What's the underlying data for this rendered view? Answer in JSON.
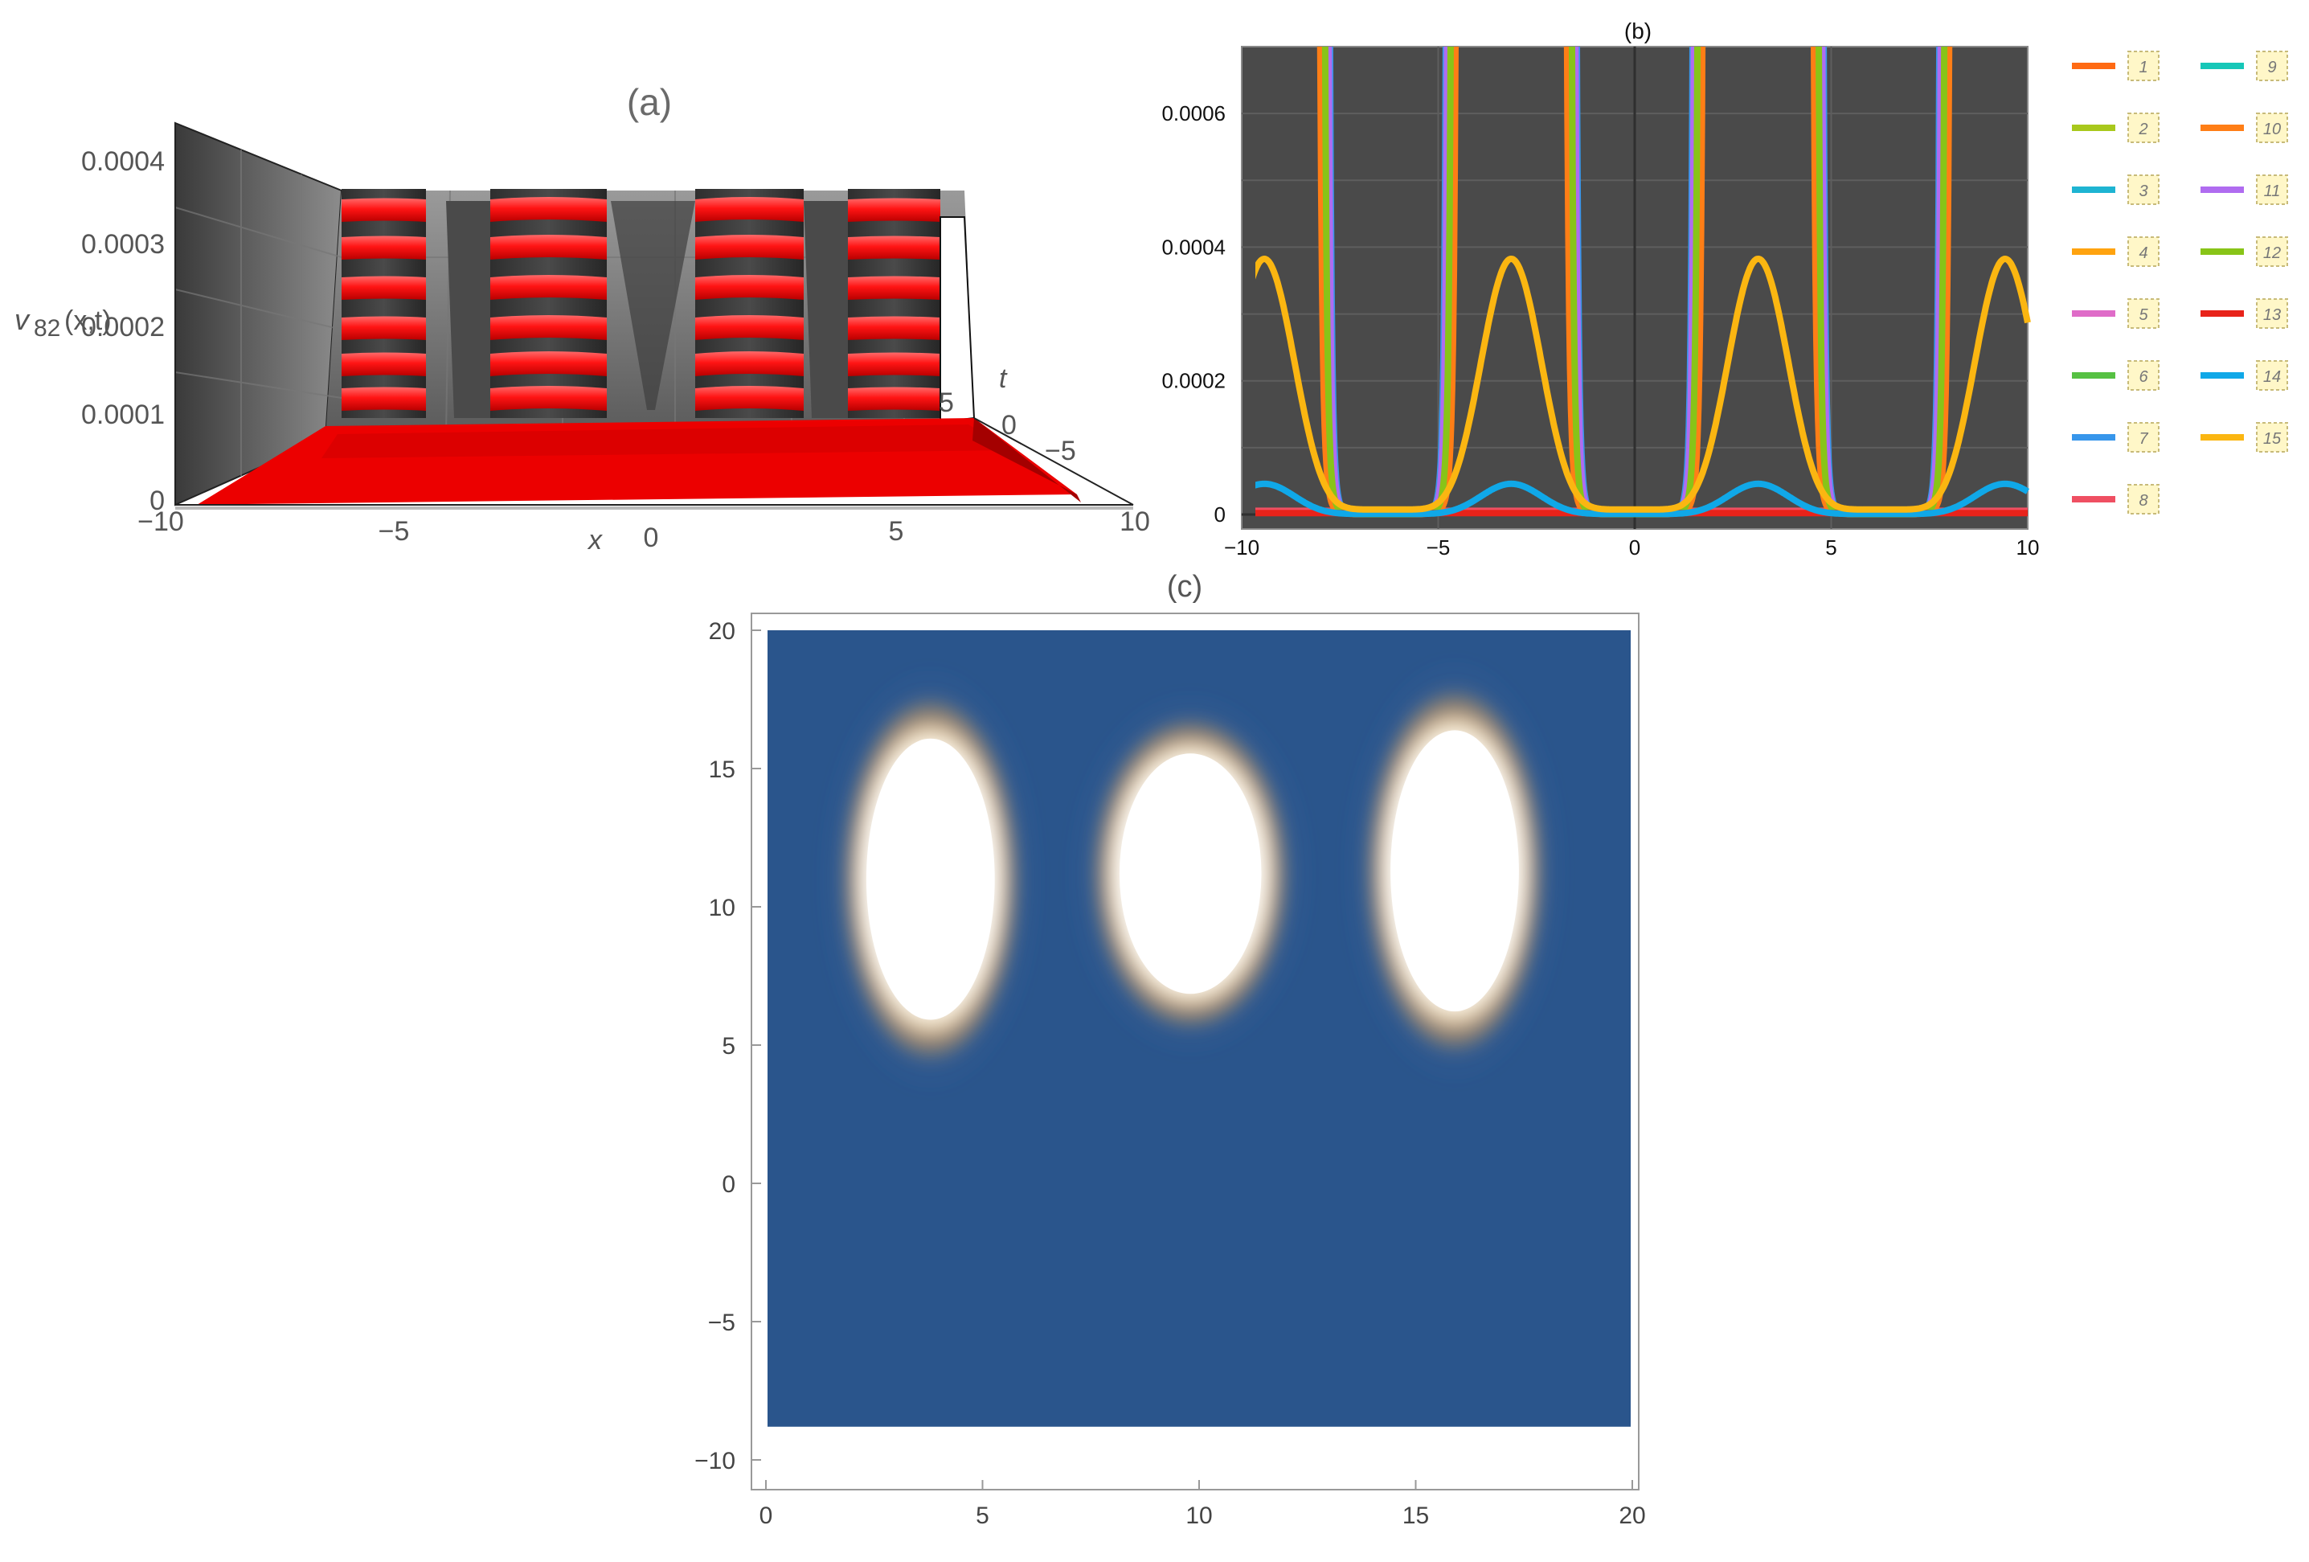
{
  "panel_a": {
    "label": "(a)",
    "z_ticks": [
      "0",
      "0.0001",
      "0.0002",
      "0.0003",
      "0.0004"
    ],
    "x_ticks": [
      "−10",
      "−5",
      "0",
      "5",
      "10"
    ],
    "x_label": "x",
    "t_label": "t",
    "t_ticks": [
      "−5",
      "0",
      "5"
    ],
    "z_label_main": "v",
    "z_label_sub": "82",
    "z_label_args": "(x,t)",
    "colors": {
      "surface": "#ff1a1a",
      "box": "#707070"
    }
  },
  "chart_data": [
    {
      "type": "line",
      "title": "(b)",
      "xlim": [
        -10,
        10
      ],
      "ylim": [
        0,
        0.0007
      ],
      "x_ticks": [
        "−10",
        "−5",
        "0",
        "5",
        "10"
      ],
      "y_ticks": [
        "0",
        "0.0002",
        "0.0004",
        "0.0006"
      ],
      "grid": true,
      "background": "#4a4a4a",
      "legend_placement": "right",
      "series": [
        {
          "name": "1",
          "color": "#ff6a13",
          "family": "wall",
          "width": 0.7
        },
        {
          "name": "2",
          "color": "#a8c81c",
          "family": "wall",
          "width": 0.55
        },
        {
          "name": "3",
          "color": "#1eb4d2",
          "family": "wall",
          "width": 0.4
        },
        {
          "name": "4",
          "color": "#ffa30f",
          "family": "wall",
          "width": 0.62
        },
        {
          "name": "5",
          "color": "#df6cc8",
          "family": "wall",
          "width": 0.45
        },
        {
          "name": "6",
          "color": "#56c143",
          "family": "wall",
          "width": 0.5
        },
        {
          "name": "7",
          "color": "#3796eb",
          "family": "wall",
          "width": 0.35
        },
        {
          "name": "8",
          "color": "#ef4f62",
          "family": "flat",
          "level": 5.5e-06
        },
        {
          "name": "9",
          "color": "#16c7b8",
          "family": "wall",
          "width": 0.48
        },
        {
          "name": "10",
          "color": "#ff7e16",
          "family": "wall",
          "width": 0.85
        },
        {
          "name": "11",
          "color": "#b06cf0",
          "family": "wall",
          "width": 0.42
        },
        {
          "name": "12",
          "color": "#88c418",
          "family": "wall",
          "width": 0.6
        },
        {
          "name": "13",
          "color": "#e8231a",
          "family": "flat",
          "level": 2e-06
        },
        {
          "name": "14",
          "color": "#10a8e8",
          "family": "bump",
          "amplitude": 4.5e-05
        },
        {
          "name": "15",
          "color": "#fbb611",
          "family": "bump",
          "amplitude": 0.000375
        }
      ]
    },
    {
      "type": "heatmap",
      "title": "(c)",
      "xlim": [
        0,
        20
      ],
      "ylim": [
        -10,
        20
      ],
      "x_ticks": [
        "0",
        "5",
        "10",
        "15",
        "20"
      ],
      "y_ticks": [
        "−10",
        "−5",
        "0",
        "5",
        "10",
        "15",
        "20"
      ],
      "background": "#2a558c",
      "data_extent": {
        "x": [
          0,
          20
        ],
        "y": [
          -8.8,
          20
        ]
      },
      "blobs": [
        {
          "x_center": 3.8,
          "y_center": 11,
          "x_halfwidth": 1.9,
          "y_halfwidth": 6.2
        },
        {
          "x_center": 9.8,
          "y_center": 11.2,
          "x_halfwidth": 2.1,
          "y_halfwidth": 5.3
        },
        {
          "x_center": 15.9,
          "y_center": 11.3,
          "x_halfwidth": 1.9,
          "y_halfwidth": 6.2
        }
      ],
      "colors": {
        "low": "#2a558c",
        "high": "#ffffff",
        "glow": "#f0a84a"
      }
    }
  ]
}
